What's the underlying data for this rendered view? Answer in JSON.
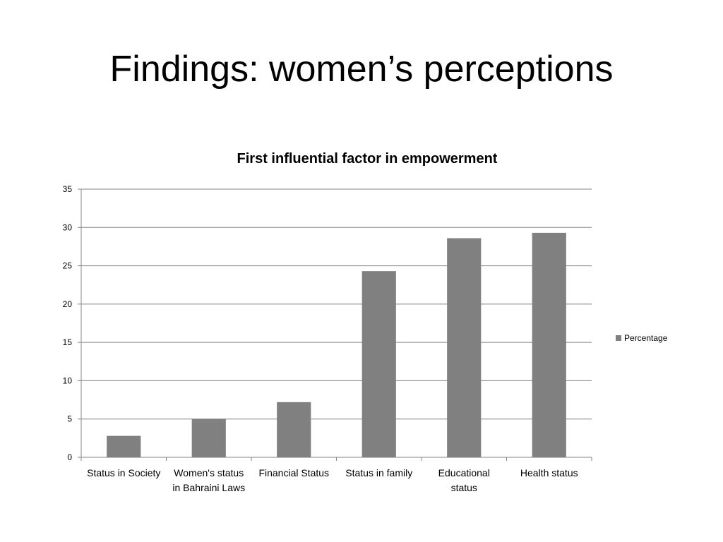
{
  "slide": {
    "title": "Findings: women’s perceptions"
  },
  "chart_data": {
    "type": "bar",
    "title": "First influential factor in empowerment",
    "categories": [
      "Status in Society",
      "Women's status in Bahraini Laws",
      "Financial Status",
      "Status in family",
      "Educational status",
      "Health status"
    ],
    "category_lines": [
      [
        "Status in Society"
      ],
      [
        "Women's status",
        "in Bahraini Laws"
      ],
      [
        "Financial Status"
      ],
      [
        "Status in family"
      ],
      [
        "Educational",
        "status"
      ],
      [
        "Health status"
      ]
    ],
    "series": [
      {
        "name": "Percentage",
        "values": [
          2.8,
          5.0,
          7.2,
          24.3,
          28.6,
          29.3
        ]
      }
    ],
    "ylim": [
      0,
      35
    ],
    "yticks": [
      0,
      5,
      10,
      15,
      20,
      25,
      30,
      35
    ],
    "grid": true,
    "legend": "right",
    "bar_color": "#808080",
    "grid_color": "#868686"
  }
}
